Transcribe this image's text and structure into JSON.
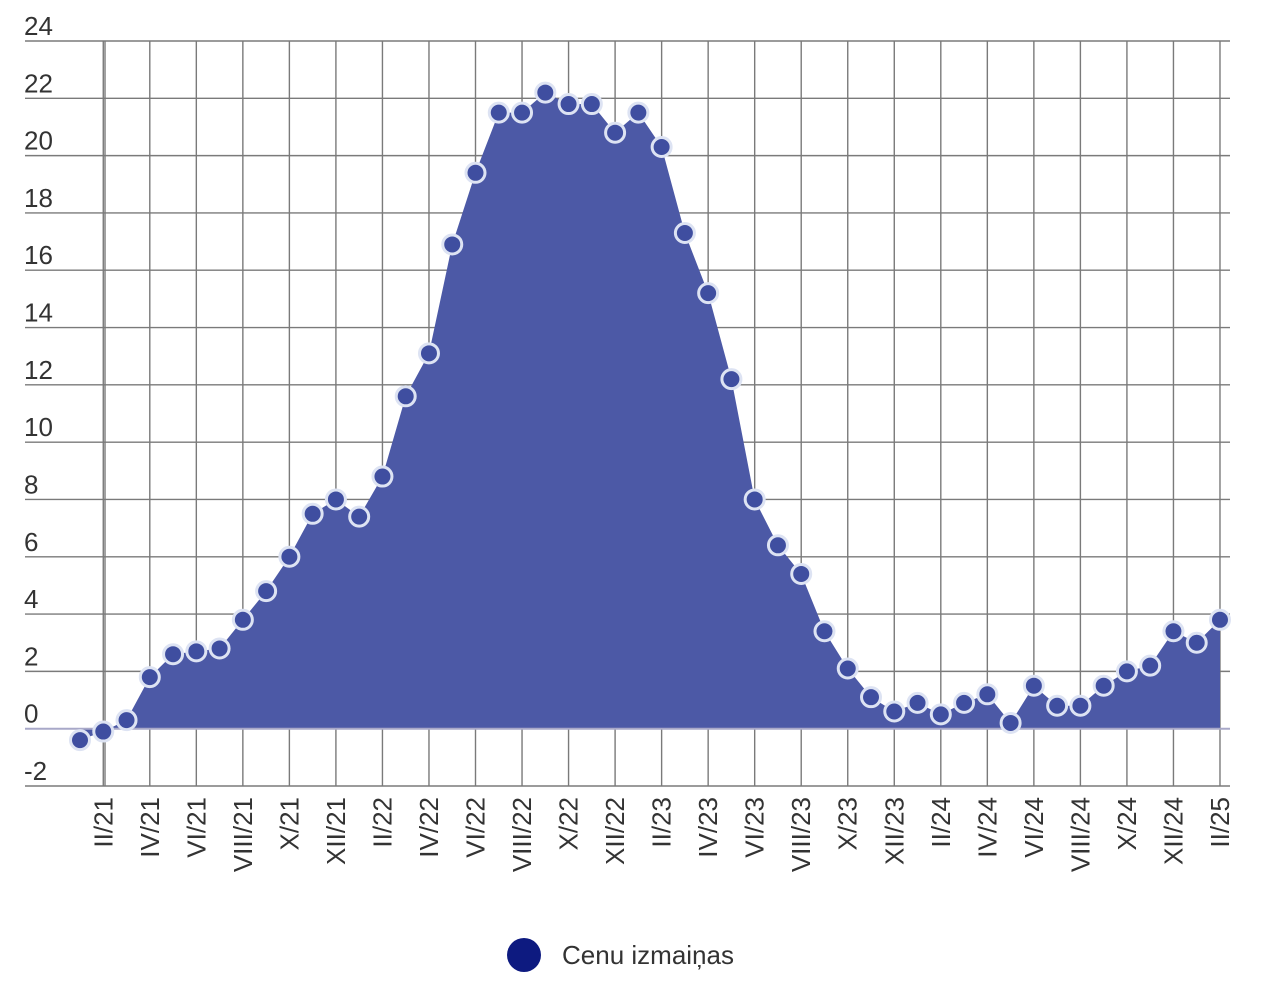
{
  "chart_data": {
    "type": "area",
    "title": "",
    "xlabel": "",
    "ylabel": "",
    "ylim": [
      -2,
      24
    ],
    "yticks": [
      -2,
      0,
      2,
      4,
      6,
      8,
      10,
      12,
      14,
      16,
      18,
      20,
      22,
      24
    ],
    "grid": true,
    "legend_position": "bottom-center",
    "colors": {
      "area_fill": "#4c59a6",
      "marker_fill": "#3f4ea0",
      "marker_stroke": "#dde3f3",
      "legend_marker": "#0d1a80",
      "grid": "#7a7a7a",
      "zero_line": "#a8a8c8"
    },
    "x_labels": [
      "II/21",
      "IV/21",
      "VI/21",
      "VIII/21",
      "X/21",
      "XII/21",
      "II/22",
      "IV/22",
      "VI/22",
      "VIII/22",
      "X/22",
      "XII/22",
      "II/23",
      "IV/23",
      "VI/23",
      "VIII/23",
      "X/23",
      "XII/23",
      "II/24",
      "IV/24",
      "VI/24",
      "VIII/24",
      "X/24",
      "XII/24",
      "II/25"
    ],
    "series": [
      {
        "name": "Cenu izmaiņas",
        "values": [
          -0.4,
          -0.1,
          0.3,
          1.8,
          2.6,
          2.7,
          2.8,
          3.8,
          4.8,
          6.0,
          7.5,
          8.0,
          7.4,
          8.8,
          11.6,
          13.1,
          16.9,
          19.4,
          21.5,
          21.5,
          22.2,
          21.8,
          21.8,
          20.8,
          21.5,
          20.3,
          17.3,
          15.2,
          12.2,
          8.0,
          6.4,
          5.4,
          3.4,
          2.1,
          1.1,
          0.6,
          0.9,
          0.5,
          0.9,
          1.2,
          0.2,
          1.5,
          0.8,
          0.8,
          1.5,
          2.0,
          2.2,
          3.4,
          3.0,
          3.8
        ]
      }
    ]
  }
}
